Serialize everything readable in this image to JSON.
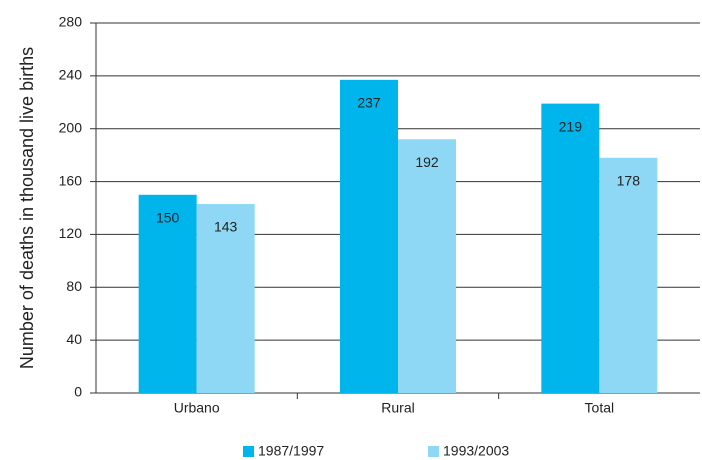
{
  "chart_data": {
    "type": "bar",
    "y_label": "Number of deaths in thousand live births",
    "categories": [
      "Urbano",
      "Rural",
      "Total"
    ],
    "series": [
      {
        "name": "1987/1997",
        "color": "#00b5ec",
        "values": [
          150,
          237,
          219
        ]
      },
      {
        "name": "1993/2003",
        "color": "#8fd8f5",
        "values": [
          143,
          192,
          178
        ]
      }
    ],
    "ylim": [
      0,
      280
    ],
    "yticks": [
      0,
      40,
      80,
      120,
      160,
      200,
      240,
      280
    ],
    "grid": true,
    "legend": "bottom"
  }
}
